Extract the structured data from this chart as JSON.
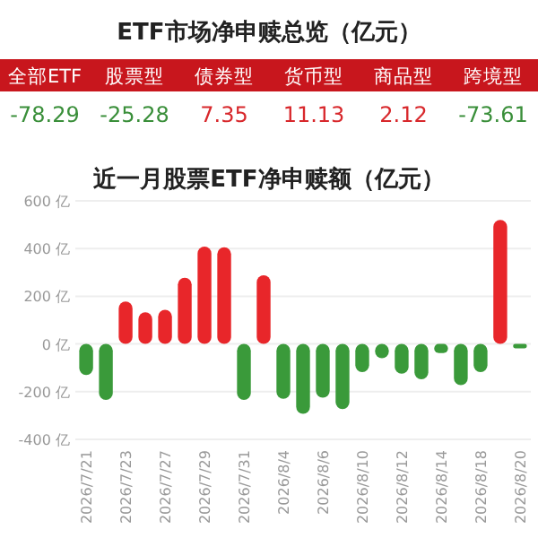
{
  "chart_data": [
    {
      "type": "other",
      "title": "ETF市场净申赎总览（亿元）",
      "categories": [
        "全部ETF",
        "股票型",
        "债券型",
        "货币型",
        "商品型",
        "跨境型"
      ],
      "values": [
        -78.29,
        -25.28,
        7.35,
        11.13,
        2.12,
        -73.61
      ],
      "data_labels": true,
      "colors": [
        "#3a8f3a",
        "#3a8f3a",
        "#d8282c",
        "#d8282c",
        "#d8282c",
        "#3a8f3a"
      ]
    },
    {
      "type": "bar",
      "title": "近一月股票ETF净申赎额（亿元）",
      "categories": [
        "2026/7/21",
        null,
        "2026/7/23",
        null,
        "2026/7/27",
        null,
        "2026/7/29",
        null,
        "2026/7/31",
        null,
        "2026/8/4",
        null,
        "2026/8/6",
        null,
        "2026/8/10",
        null,
        "2026/8/12",
        null,
        "2026/8/14",
        null,
        "2026/8/18",
        null,
        "2026/8/20"
      ],
      "values": [
        -130,
        -235,
        178,
        133,
        143,
        278,
        408,
        405,
        -235,
        288,
        -230,
        -293,
        -225,
        -273,
        -118,
        -60,
        -125,
        -148,
        -38,
        -173,
        -118,
        520,
        -18
      ],
      "colors": [
        "#3a9a3a",
        "#3a9a3a",
        "#e8262a",
        "#e8262a",
        "#e8262a",
        "#e8262a",
        "#e8262a",
        "#e8262a",
        "#3a9a3a",
        "#e8262a",
        "#3a9a3a",
        "#3a9a3a",
        "#3a9a3a",
        "#3a9a3a",
        "#3a9a3a",
        "#3a9a3a",
        "#3a9a3a",
        "#3a9a3a",
        "#3a9a3a",
        "#3a9a3a",
        "#3a9a3a",
        "#e8262a",
        "#3a9a3a"
      ],
      "ylim": [
        -400,
        600
      ],
      "yticks": [
        {
          "value": -400,
          "label": "-400 亿"
        },
        {
          "value": -200,
          "label": "-200 亿"
        },
        {
          "value": 0,
          "label": "0 亿"
        },
        {
          "value": 200,
          "label": "200 亿"
        },
        {
          "value": 400,
          "label": "400 亿"
        },
        {
          "value": 600,
          "label": "600 亿"
        }
      ],
      "grid": "y"
    }
  ]
}
